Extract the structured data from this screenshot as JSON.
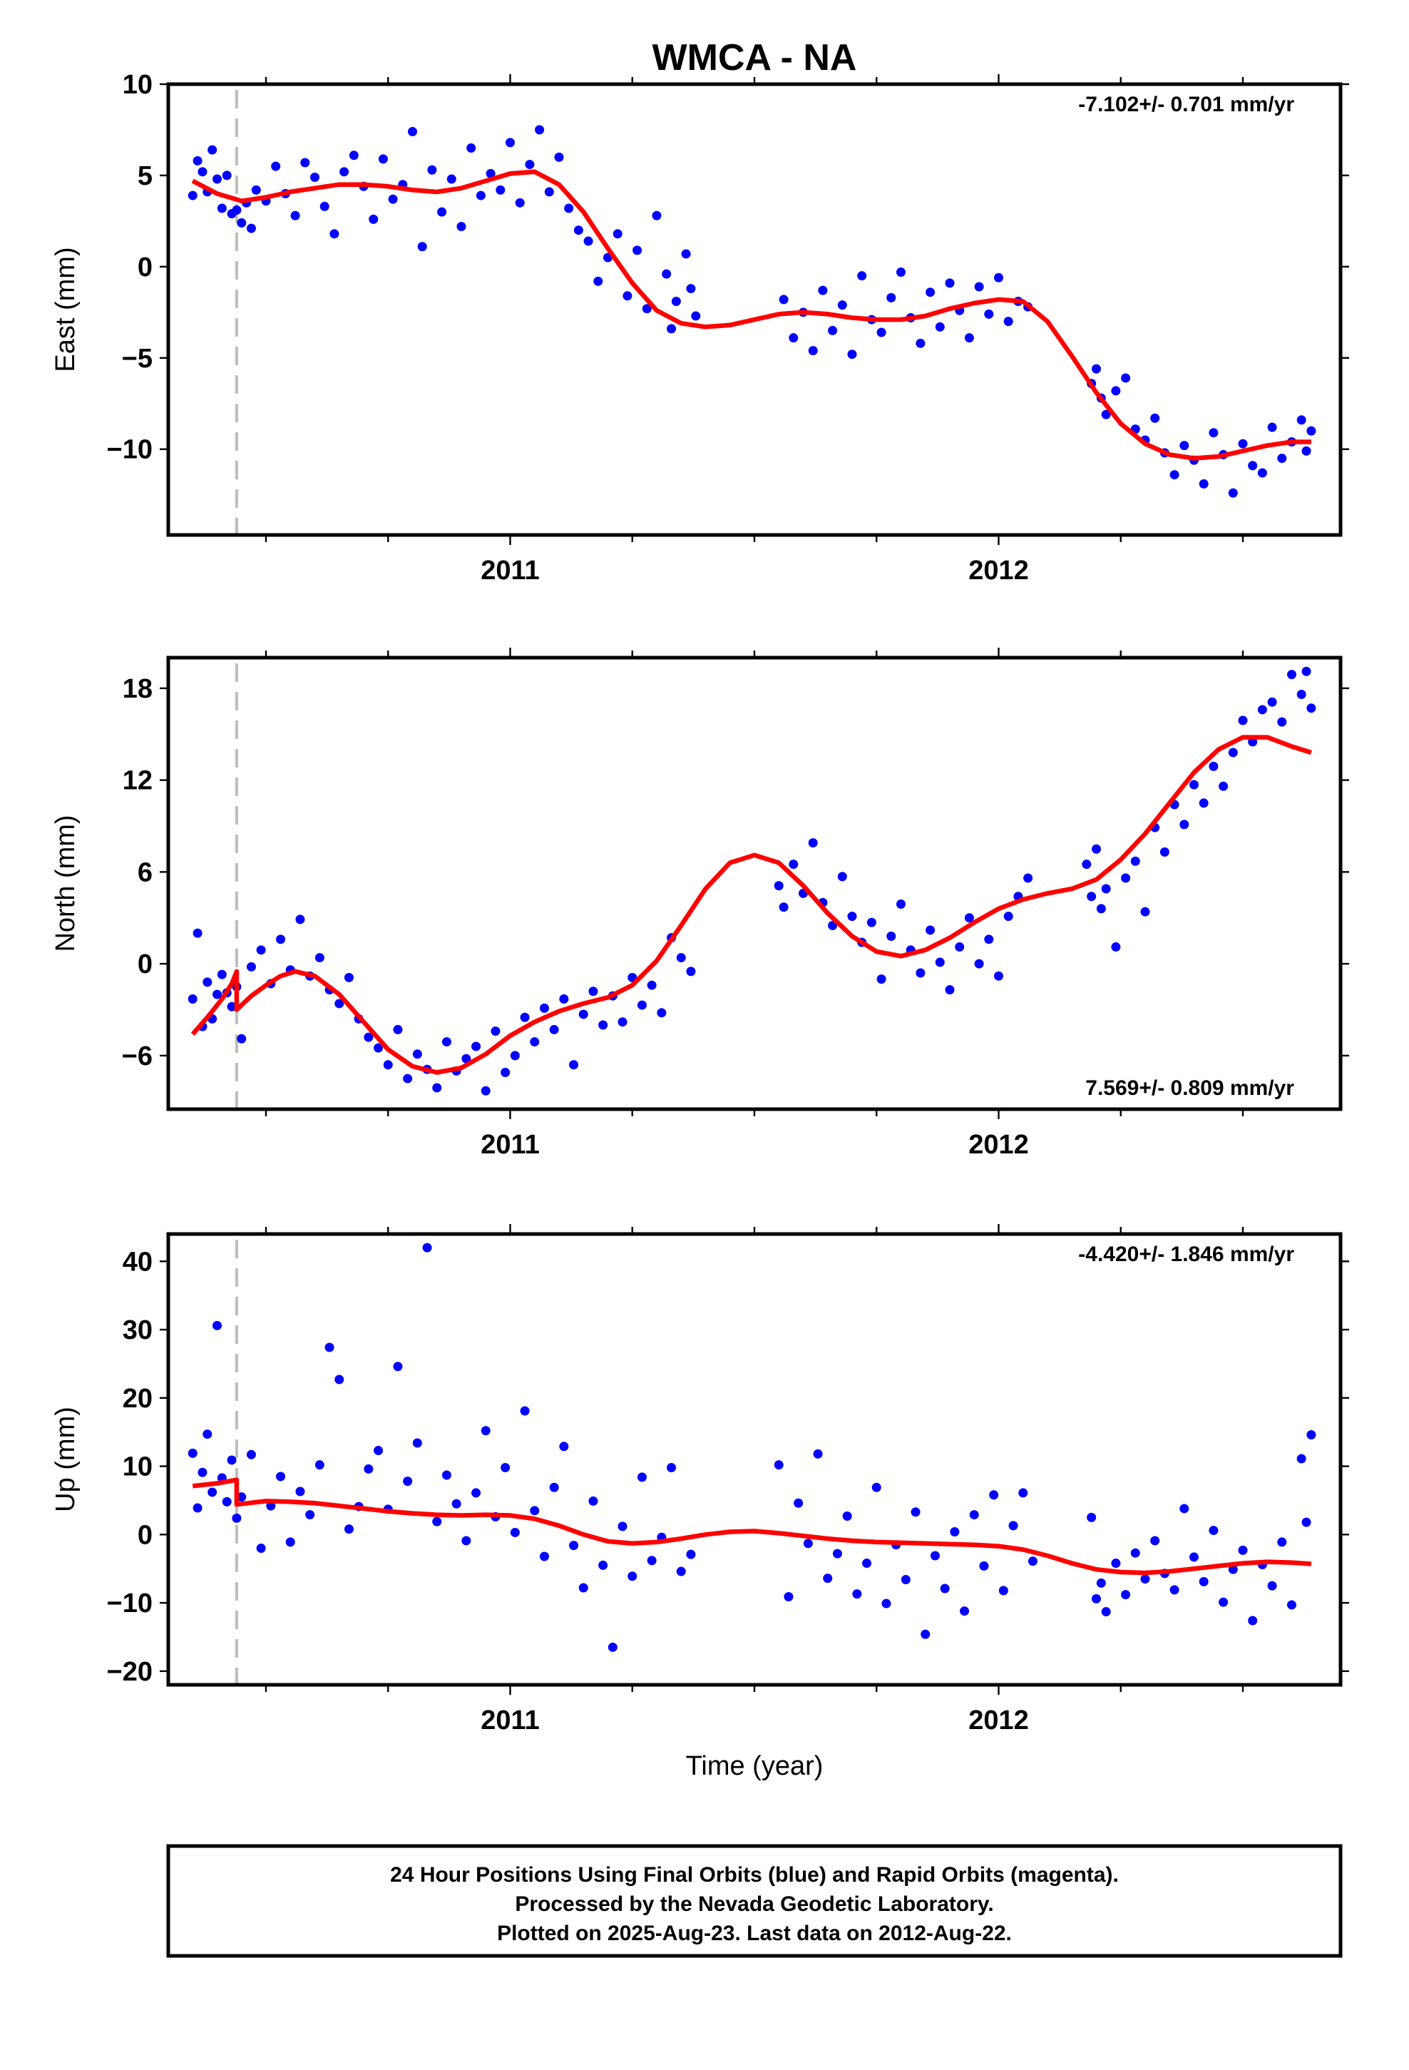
{
  "title": "WMCA - NA",
  "xlabel": "Time (year)",
  "footer": {
    "line1": "24 Hour Positions Using Final Orbits (blue) and Rapid Orbits (magenta).",
    "line2": "Processed by the Nevada Geodetic Laboratory.",
    "line3": "Plotted on 2025-Aug-23. Last data on 2012-Aug-22."
  },
  "colors": {
    "points": "#0000ff",
    "fit": "#ff0000",
    "step_line": "#bdbdbd"
  },
  "chart_data": [
    {
      "type": "scatter",
      "name": "east",
      "ylabel": "East (mm)",
      "rate": "-7.102+/- 0.701 mm/yr",
      "rate_position": "top-right",
      "xlim": [
        2010.3,
        2012.7
      ],
      "ylim": [
        -14.7,
        10
      ],
      "yticks": [
        10,
        5,
        0,
        -5,
        -10
      ],
      "xticks": [
        2011,
        2012
      ],
      "step_epoch": 2010.44,
      "fit": {
        "x": [
          2010.35,
          2010.4,
          2010.45,
          2010.5,
          2010.55,
          2010.6,
          2010.65,
          2010.7,
          2010.75,
          2010.8,
          2010.85,
          2010.9,
          2010.95,
          2011.0,
          2011.05,
          2011.1,
          2011.15,
          2011.2,
          2011.25,
          2011.3,
          2011.35,
          2011.4,
          2011.45,
          2011.5,
          2011.55,
          2011.6,
          2011.65,
          2011.7,
          2011.75,
          2011.8,
          2011.85,
          2011.9,
          2011.95,
          2012.0,
          2012.05,
          2012.1,
          2012.15,
          2012.2,
          2012.25,
          2012.3,
          2012.35,
          2012.4,
          2012.45,
          2012.5,
          2012.55,
          2012.6,
          2012.64
        ],
        "y": [
          4.7,
          4.0,
          3.6,
          3.8,
          4.1,
          4.3,
          4.5,
          4.5,
          4.4,
          4.2,
          4.1,
          4.3,
          4.7,
          5.1,
          5.2,
          4.5,
          3.0,
          1.0,
          -0.9,
          -2.4,
          -3.1,
          -3.3,
          -3.2,
          -2.9,
          -2.6,
          -2.5,
          -2.6,
          -2.8,
          -2.9,
          -2.9,
          -2.7,
          -2.3,
          -2.0,
          -1.8,
          -1.9,
          -3.0,
          -4.9,
          -6.9,
          -8.6,
          -9.7,
          -10.3,
          -10.5,
          -10.4,
          -10.1,
          -9.8,
          -9.6,
          -9.6
        ]
      },
      "points": {
        "x": [
          2010.35,
          2010.36,
          2010.37,
          2010.38,
          2010.39,
          2010.4,
          2010.41,
          2010.42,
          2010.43,
          2010.44,
          2010.45,
          2010.46,
          2010.47,
          2010.48,
          2010.5,
          2010.52,
          2010.54,
          2010.56,
          2010.58,
          2010.6,
          2010.62,
          2010.64,
          2010.66,
          2010.68,
          2010.7,
          2010.72,
          2010.74,
          2010.76,
          2010.78,
          2010.8,
          2010.82,
          2010.84,
          2010.86,
          2010.88,
          2010.9,
          2010.92,
          2010.94,
          2010.96,
          2010.98,
          2011.0,
          2011.02,
          2011.04,
          2011.06,
          2011.08,
          2011.1,
          2011.12,
          2011.14,
          2011.16,
          2011.18,
          2011.2,
          2011.22,
          2011.24,
          2011.26,
          2011.28,
          2011.3,
          2011.32,
          2011.33,
          2011.34,
          2011.36,
          2011.37,
          2011.38,
          2011.56,
          2011.58,
          2011.6,
          2011.62,
          2011.64,
          2011.66,
          2011.68,
          2011.7,
          2011.72,
          2011.74,
          2011.76,
          2011.78,
          2011.8,
          2011.82,
          2011.84,
          2011.86,
          2011.88,
          2011.9,
          2011.92,
          2011.94,
          2011.96,
          2011.98,
          2012.0,
          2012.02,
          2012.04,
          2012.06,
          2012.19,
          2012.2,
          2012.21,
          2012.22,
          2012.24,
          2012.26,
          2012.28,
          2012.3,
          2012.32,
          2012.34,
          2012.36,
          2012.38,
          2012.4,
          2012.42,
          2012.44,
          2012.46,
          2012.48,
          2012.5,
          2012.52,
          2012.54,
          2012.56,
          2012.58,
          2012.6,
          2012.62,
          2012.63,
          2012.64
        ],
        "y": [
          3.9,
          5.8,
          5.2,
          4.1,
          6.4,
          4.8,
          3.2,
          5.0,
          2.9,
          3.1,
          2.4,
          3.5,
          2.1,
          4.2,
          3.6,
          5.5,
          4.0,
          2.8,
          5.7,
          4.9,
          3.3,
          1.8,
          5.2,
          6.1,
          4.4,
          2.6,
          5.9,
          3.7,
          4.5,
          7.4,
          1.1,
          5.3,
          3.0,
          4.8,
          2.2,
          6.5,
          3.9,
          5.1,
          4.2,
          6.8,
          3.5,
          5.6,
          7.5,
          4.1,
          6.0,
          3.2,
          2.0,
          1.4,
          -0.8,
          0.5,
          1.8,
          -1.6,
          0.9,
          -2.3,
          2.8,
          -0.4,
          -3.4,
          -1.9,
          0.7,
          -1.2,
          -2.7,
          -1.8,
          -3.9,
          -2.5,
          -4.6,
          -1.3,
          -3.5,
          -2.1,
          -4.8,
          -0.5,
          -2.9,
          -3.6,
          -1.7,
          -0.3,
          -2.8,
          -4.2,
          -1.4,
          -3.3,
          -0.9,
          -2.4,
          -3.9,
          -1.1,
          -2.6,
          -0.6,
          -3.0,
          -1.9,
          -2.2,
          -6.4,
          -5.6,
          -7.2,
          -8.1,
          -6.8,
          -6.1,
          -8.9,
          -9.5,
          -8.3,
          -10.2,
          -11.4,
          -9.8,
          -10.6,
          -11.9,
          -9.1,
          -10.3,
          -12.4,
          -9.7,
          -10.9,
          -11.3,
          -8.8,
          -10.5,
          -9.6,
          -8.4,
          -10.1,
          -9.0
        ]
      }
    },
    {
      "type": "scatter",
      "name": "north",
      "ylabel": "North (mm)",
      "rate": "7.569+/- 0.809 mm/yr",
      "rate_position": "bottom-right",
      "xlim": [
        2010.3,
        2012.7
      ],
      "ylim": [
        -9.5,
        20
      ],
      "yticks": [
        18,
        12,
        6,
        0,
        -6
      ],
      "xticks": [
        2011,
        2012
      ],
      "step_epoch": 2010.44,
      "fit": {
        "x": [
          2010.35,
          2010.38,
          2010.41,
          2010.43,
          2010.44,
          2010.44,
          2010.47,
          2010.5,
          2010.53,
          2010.56,
          2010.6,
          2010.65,
          2010.7,
          2010.75,
          2010.8,
          2010.85,
          2010.9,
          2010.95,
          2011.0,
          2011.05,
          2011.1,
          2011.15,
          2011.2,
          2011.25,
          2011.3,
          2011.35,
          2011.4,
          2011.45,
          2011.5,
          2011.55,
          2011.6,
          2011.65,
          2011.7,
          2011.75,
          2011.8,
          2011.85,
          2011.9,
          2011.95,
          2012.0,
          2012.05,
          2012.1,
          2012.15,
          2012.2,
          2012.25,
          2012.3,
          2012.35,
          2012.4,
          2012.45,
          2012.5,
          2012.55,
          2012.6,
          2012.64
        ],
        "y": [
          -4.6,
          -3.5,
          -2.3,
          -1.3,
          -0.5,
          -3.0,
          -2.1,
          -1.4,
          -0.8,
          -0.5,
          -0.8,
          -2.0,
          -3.8,
          -5.6,
          -6.7,
          -7.1,
          -6.8,
          -5.9,
          -4.7,
          -3.8,
          -3.1,
          -2.6,
          -2.2,
          -1.4,
          0.2,
          2.5,
          4.9,
          6.6,
          7.1,
          6.6,
          5.1,
          3.3,
          1.8,
          0.8,
          0.5,
          0.9,
          1.7,
          2.7,
          3.6,
          4.2,
          4.6,
          4.9,
          5.5,
          6.8,
          8.5,
          10.5,
          12.5,
          14.0,
          14.8,
          14.8,
          14.2,
          13.8
        ]
      },
      "points": {
        "x": [
          2010.35,
          2010.36,
          2010.37,
          2010.38,
          2010.39,
          2010.4,
          2010.41,
          2010.42,
          2010.43,
          2010.44,
          2010.45,
          2010.47,
          2010.49,
          2010.51,
          2010.53,
          2010.55,
          2010.57,
          2010.59,
          2010.61,
          2010.63,
          2010.65,
          2010.67,
          2010.69,
          2010.71,
          2010.73,
          2010.75,
          2010.77,
          2010.79,
          2010.81,
          2010.83,
          2010.85,
          2010.87,
          2010.89,
          2010.91,
          2010.93,
          2010.95,
          2010.97,
          2010.99,
          2011.01,
          2011.03,
          2011.05,
          2011.07,
          2011.09,
          2011.11,
          2011.13,
          2011.15,
          2011.17,
          2011.19,
          2011.21,
          2011.23,
          2011.25,
          2011.27,
          2011.29,
          2011.31,
          2011.33,
          2011.35,
          2011.37,
          2011.55,
          2011.56,
          2011.58,
          2011.6,
          2011.62,
          2011.64,
          2011.66,
          2011.68,
          2011.7,
          2011.72,
          2011.74,
          2011.76,
          2011.78,
          2011.8,
          2011.82,
          2011.84,
          2011.86,
          2011.88,
          2011.9,
          2011.92,
          2011.94,
          2011.96,
          2011.98,
          2012.0,
          2012.02,
          2012.04,
          2012.06,
          2012.18,
          2012.19,
          2012.2,
          2012.21,
          2012.22,
          2012.24,
          2012.26,
          2012.28,
          2012.3,
          2012.32,
          2012.34,
          2012.36,
          2012.38,
          2012.4,
          2012.42,
          2012.44,
          2012.46,
          2012.48,
          2012.5,
          2012.52,
          2012.54,
          2012.56,
          2012.58,
          2012.6,
          2012.62,
          2012.63,
          2012.64
        ],
        "y": [
          -2.3,
          2.0,
          -4.1,
          -1.2,
          -3.6,
          -2.0,
          -0.7,
          -1.9,
          -2.8,
          -1.5,
          -4.9,
          -0.2,
          0.9,
          -1.3,
          1.6,
          -0.4,
          2.9,
          -0.8,
          0.4,
          -1.7,
          -2.6,
          -0.9,
          -3.6,
          -4.8,
          -5.5,
          -6.6,
          -4.3,
          -7.5,
          -5.9,
          -6.9,
          -8.1,
          -5.1,
          -7.0,
          -6.2,
          -5.4,
          -8.3,
          -4.4,
          -7.1,
          -6.0,
          -3.5,
          -5.1,
          -2.9,
          -4.3,
          -2.3,
          -6.6,
          -3.3,
          -1.8,
          -4.0,
          -2.1,
          -3.8,
          -0.9,
          -2.7,
          -1.4,
          -3.2,
          1.7,
          0.4,
          -0.5,
          5.1,
          3.7,
          6.5,
          4.6,
          7.9,
          4.0,
          2.5,
          5.7,
          3.1,
          1.4,
          2.7,
          -1.0,
          1.8,
          3.9,
          0.9,
          -0.6,
          2.2,
          0.1,
          -1.7,
          1.1,
          3.0,
          0.0,
          1.6,
          -0.8,
          3.1,
          4.4,
          5.6,
          6.5,
          4.4,
          7.5,
          3.6,
          4.9,
          1.1,
          5.6,
          6.7,
          3.4,
          8.9,
          7.3,
          10.4,
          9.1,
          11.7,
          10.5,
          12.9,
          11.6,
          13.8,
          15.9,
          14.5,
          16.6,
          17.1,
          15.8,
          18.9,
          17.6,
          19.1,
          16.7
        ]
      }
    },
    {
      "type": "scatter",
      "name": "up",
      "ylabel": "Up (mm)",
      "rate": "-4.420+/- 1.846 mm/yr",
      "rate_position": "top-right",
      "xlim": [
        2010.3,
        2012.7
      ],
      "ylim": [
        -22,
        44
      ],
      "yticks": [
        40,
        30,
        20,
        10,
        0,
        -10,
        -20
      ],
      "xticks": [
        2011,
        2012
      ],
      "step_epoch": 2010.44,
      "fit": {
        "x": [
          2010.35,
          2010.4,
          2010.44,
          2010.44,
          2010.5,
          2010.55,
          2010.6,
          2010.65,
          2010.7,
          2010.75,
          2010.8,
          2010.85,
          2010.9,
          2010.95,
          2011.0,
          2011.05,
          2011.1,
          2011.15,
          2011.2,
          2011.25,
          2011.3,
          2011.35,
          2011.4,
          2011.45,
          2011.5,
          2011.55,
          2011.6,
          2011.65,
          2011.7,
          2011.75,
          2011.8,
          2011.85,
          2011.9,
          2011.95,
          2012.0,
          2012.05,
          2012.1,
          2012.15,
          2012.2,
          2012.25,
          2012.3,
          2012.35,
          2012.4,
          2012.45,
          2012.5,
          2012.55,
          2012.6,
          2012.64
        ],
        "y": [
          7.1,
          7.5,
          8.0,
          4.4,
          4.9,
          4.8,
          4.6,
          4.2,
          3.8,
          3.4,
          3.1,
          2.9,
          2.8,
          2.9,
          2.8,
          2.3,
          1.3,
          0.0,
          -1.0,
          -1.3,
          -1.1,
          -0.6,
          0.0,
          0.4,
          0.5,
          0.2,
          -0.2,
          -0.6,
          -0.9,
          -1.1,
          -1.2,
          -1.3,
          -1.4,
          -1.5,
          -1.7,
          -2.2,
          -3.1,
          -4.2,
          -5.1,
          -5.5,
          -5.6,
          -5.4,
          -5.0,
          -4.6,
          -4.2,
          -4.0,
          -4.1,
          -4.3
        ]
      },
      "points": {
        "x": [
          2010.35,
          2010.36,
          2010.37,
          2010.38,
          2010.39,
          2010.4,
          2010.41,
          2010.42,
          2010.43,
          2010.44,
          2010.45,
          2010.47,
          2010.49,
          2010.51,
          2010.53,
          2010.55,
          2010.57,
          2010.59,
          2010.61,
          2010.63,
          2010.65,
          2010.67,
          2010.69,
          2010.71,
          2010.73,
          2010.75,
          2010.77,
          2010.79,
          2010.81,
          2010.83,
          2010.85,
          2010.87,
          2010.89,
          2010.91,
          2010.93,
          2010.95,
          2010.97,
          2010.99,
          2011.01,
          2011.03,
          2011.05,
          2011.07,
          2011.09,
          2011.11,
          2011.13,
          2011.15,
          2011.17,
          2011.19,
          2011.21,
          2011.23,
          2011.25,
          2011.27,
          2011.29,
          2011.31,
          2011.33,
          2011.35,
          2011.37,
          2011.55,
          2011.57,
          2011.59,
          2011.61,
          2011.63,
          2011.65,
          2011.67,
          2011.69,
          2011.71,
          2011.73,
          2011.75,
          2011.77,
          2011.79,
          2011.81,
          2011.83,
          2011.85,
          2011.87,
          2011.89,
          2011.91,
          2011.93,
          2011.95,
          2011.97,
          2011.99,
          2012.01,
          2012.03,
          2012.05,
          2012.07,
          2012.19,
          2012.2,
          2012.21,
          2012.22,
          2012.24,
          2012.26,
          2012.28,
          2012.3,
          2012.32,
          2012.34,
          2012.36,
          2012.38,
          2012.4,
          2012.42,
          2012.44,
          2012.46,
          2012.48,
          2012.5,
          2012.52,
          2012.54,
          2012.56,
          2012.58,
          2012.6,
          2012.62,
          2012.63,
          2012.64
        ],
        "y": [
          11.9,
          3.9,
          9.1,
          14.7,
          6.2,
          30.6,
          8.3,
          4.8,
          10.9,
          2.4,
          5.5,
          11.7,
          -2.0,
          4.2,
          8.5,
          -1.1,
          6.3,
          2.9,
          10.2,
          27.4,
          22.7,
          0.8,
          4.1,
          9.6,
          12.3,
          3.7,
          24.6,
          7.8,
          13.4,
          42.0,
          1.9,
          8.7,
          4.5,
          -0.9,
          6.1,
          15.2,
          2.6,
          9.8,
          0.3,
          18.1,
          3.5,
          -3.2,
          6.9,
          12.9,
          -1.6,
          -7.8,
          4.9,
          -4.5,
          -16.5,
          1.2,
          -6.1,
          8.4,
          -3.8,
          -0.4,
          9.8,
          -5.4,
          -2.9,
          10.2,
          -9.1,
          4.6,
          -1.3,
          11.8,
          -6.4,
          -2.8,
          2.7,
          -8.7,
          -4.2,
          6.9,
          -10.1,
          -1.5,
          -6.6,
          3.3,
          -14.6,
          -3.1,
          -7.9,
          0.4,
          -11.2,
          2.9,
          -4.6,
          5.8,
          -8.2,
          1.3,
          6.1,
          -3.9,
          2.5,
          -9.4,
          -7.1,
          -11.3,
          -4.2,
          -8.8,
          -2.7,
          -6.5,
          -0.9,
          -5.7,
          -8.1,
          3.8,
          -3.3,
          -6.9,
          0.6,
          -9.9,
          -5.1,
          -2.3,
          -12.6,
          -4.4,
          -7.5,
          -1.1,
          -10.3,
          11.1,
          1.8,
          14.6
        ]
      }
    }
  ]
}
